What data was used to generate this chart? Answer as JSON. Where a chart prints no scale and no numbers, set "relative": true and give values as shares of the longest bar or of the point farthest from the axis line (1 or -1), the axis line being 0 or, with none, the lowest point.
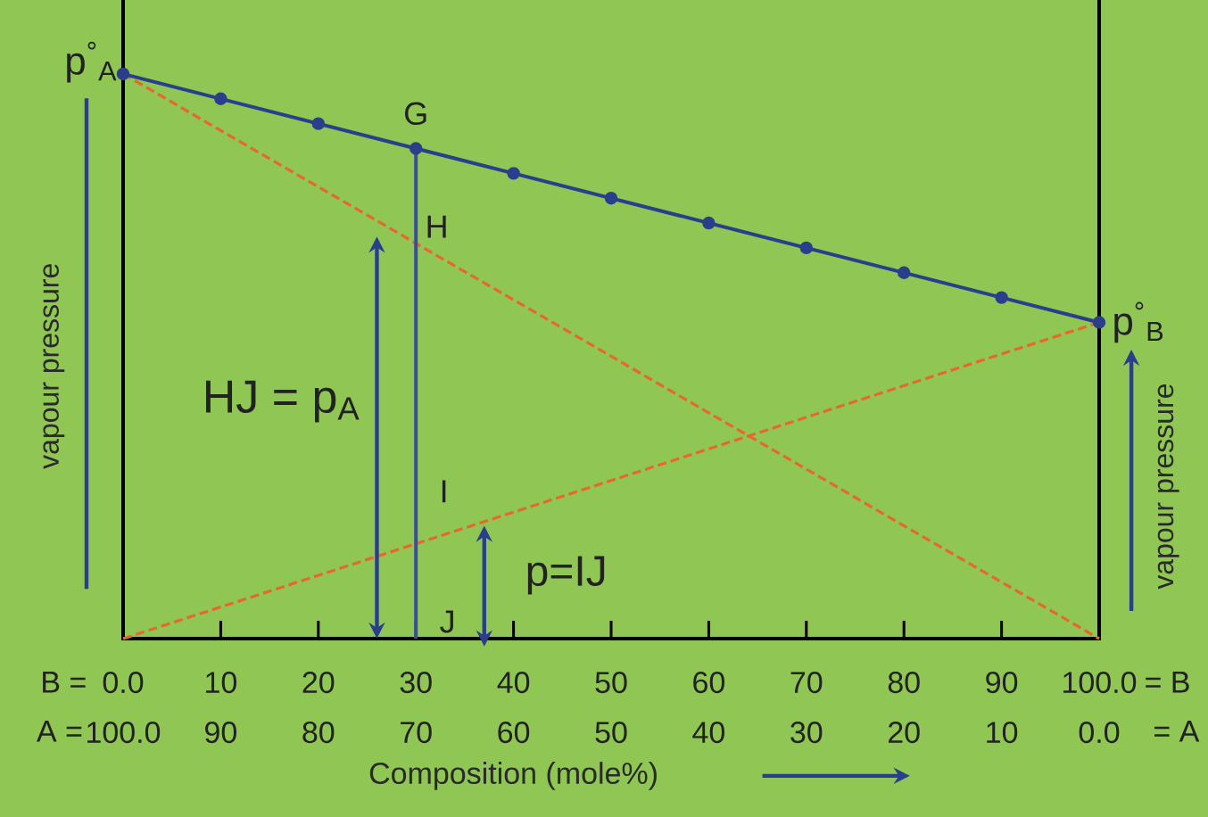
{
  "chart_data": {
    "type": "line",
    "relative": true,
    "xlabel": "Composition (mole%)",
    "ylabel": "vapour pressure",
    "y2label": "vapour pressure",
    "xlim": [
      0,
      100
    ],
    "xticks": [
      {
        "value": 0,
        "label": "0.0"
      },
      10,
      20,
      30,
      40,
      50,
      60,
      70,
      80,
      90,
      {
        "value": 100,
        "label": "100.0"
      }
    ],
    "x2lim": [
      100,
      0
    ],
    "x2ticks": [
      {
        "value": 100,
        "label": "100.0"
      },
      90,
      80,
      70,
      60,
      50,
      40,
      30,
      20,
      10,
      {
        "value": 0,
        "label": "0.0"
      }
    ],
    "series": [
      {
        "color": "#2b3e8c",
        "marker": "circle",
        "line_style": "solid",
        "x": [
          0,
          10,
          20,
          30,
          40,
          50,
          60,
          70,
          80,
          90,
          100
        ],
        "values": [
          1,
          0.956,
          0.912,
          0.868,
          0.824,
          0.78,
          0.736,
          0.692,
          0.648,
          0.604,
          0.56
        ]
      },
      {
        "color": "#e8682c",
        "marker": "none",
        "line_style": "dashed",
        "x": [
          0,
          100
        ],
        "values": [
          1,
          0
        ]
      },
      {
        "color": "#e8682c",
        "marker": "none",
        "line_style": "dashed",
        "x": [
          0,
          100
        ],
        "values": [
          0,
          0.56
        ]
      },
      {
        "color": "#3a4ea0",
        "marker": "none",
        "line_style": "solid",
        "x": [
          30,
          30
        ],
        "values": [
          0,
          0.868
        ]
      }
    ],
    "annotations": [
      "B =",
      "= B",
      "A =",
      "= A",
      {
        "text": "p$^{°}$$_{A}$",
        "x": 0,
        "y": 1
      },
      {
        "text": "p$^{°}$$_{B}$",
        "x": 100,
        "y": 0.56
      },
      {
        "text": "G",
        "x": 30,
        "y": 0.868
      },
      {
        "text": "H",
        "x": 30,
        "y": 0.7
      },
      {
        "text": "I",
        "x": 30,
        "y": 0.168
      },
      {
        "text": "J",
        "x": 30,
        "y": 0
      },
      "HJ = p$_{A}$",
      "p=IJ"
    ],
    "grid": false
  }
}
